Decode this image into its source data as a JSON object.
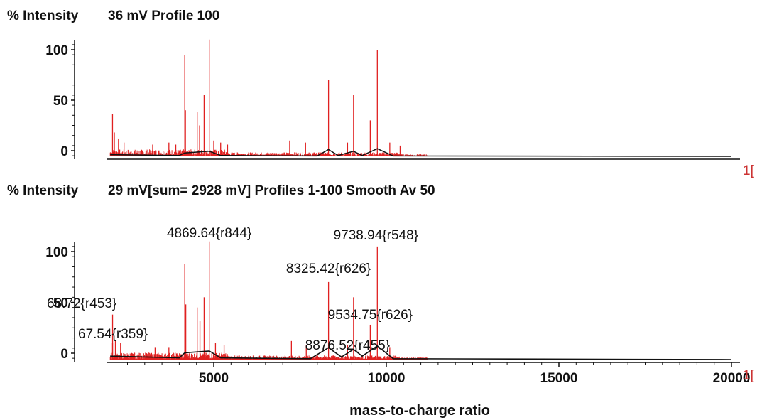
{
  "chart_data": [
    {
      "type": "line",
      "y_axis_label": "% Intensity",
      "header": "36 mV  Profile 100",
      "ylim": [
        0,
        100
      ],
      "xlim": [
        2000,
        20000
      ],
      "y_ticks": [
        0,
        50,
        100
      ],
      "edge_mark": "1[",
      "colors": {
        "raw": "#e02020",
        "smoothed": "#111111"
      },
      "peaks": [
        {
          "x": 2067,
          "y": 36
        },
        {
          "x": 2120,
          "y": 18
        },
        {
          "x": 2240,
          "y": 12
        },
        {
          "x": 2400,
          "y": 8
        },
        {
          "x": 3230,
          "y": 6
        },
        {
          "x": 3700,
          "y": 8
        },
        {
          "x": 3900,
          "y": 6
        },
        {
          "x": 4160,
          "y": 95
        },
        {
          "x": 4180,
          "y": 40
        },
        {
          "x": 4520,
          "y": 38
        },
        {
          "x": 4590,
          "y": 25
        },
        {
          "x": 4720,
          "y": 55
        },
        {
          "x": 4869.64,
          "y": 110
        },
        {
          "x": 5000,
          "y": 10
        },
        {
          "x": 5200,
          "y": 8
        },
        {
          "x": 5400,
          "y": 6
        },
        {
          "x": 7200,
          "y": 10
        },
        {
          "x": 7660,
          "y": 8
        },
        {
          "x": 8325.42,
          "y": 70
        },
        {
          "x": 8876.52,
          "y": 8
        },
        {
          "x": 9050,
          "y": 55
        },
        {
          "x": 9534.75,
          "y": 30
        },
        {
          "x": 9738.94,
          "y": 100
        },
        {
          "x": 10100,
          "y": 8
        },
        {
          "x": 10400,
          "y": 5
        }
      ],
      "smoothed": [
        {
          "x": 2000,
          "y": 2
        },
        {
          "x": 4000,
          "y": 1
        },
        {
          "x": 4160,
          "y": 4
        },
        {
          "x": 4869.64,
          "y": 6
        },
        {
          "x": 5200,
          "y": 1
        },
        {
          "x": 8000,
          "y": 0.5
        },
        {
          "x": 8325.42,
          "y": 8
        },
        {
          "x": 8600,
          "y": 1
        },
        {
          "x": 9050,
          "y": 6
        },
        {
          "x": 9300,
          "y": 1
        },
        {
          "x": 9738.94,
          "y": 9
        },
        {
          "x": 10200,
          "y": 0.5
        },
        {
          "x": 20000,
          "y": 0
        }
      ],
      "annotations": []
    },
    {
      "type": "line",
      "y_axis_label": "% Intensity",
      "header": "29 mV[sum= 2928 mV]  Profiles 1-100 Smooth Av 50",
      "xlabel": "mass-to-charge ratio",
      "ylim": [
        0,
        100
      ],
      "xlim": [
        2000,
        20000
      ],
      "y_ticks": [
        0,
        50,
        100
      ],
      "x_ticks": [
        5000,
        10000,
        15000,
        20000
      ],
      "edge_mark": "1[",
      "colors": {
        "raw": "#e02020",
        "smoothed": "#111111"
      },
      "peaks": [
        {
          "x": 2068.72,
          "y": 38
        },
        {
          "x": 2067.54,
          "y": 10
        },
        {
          "x": 2150,
          "y": 12
        },
        {
          "x": 2300,
          "y": 10
        },
        {
          "x": 3300,
          "y": 6
        },
        {
          "x": 3700,
          "y": 6
        },
        {
          "x": 4160,
          "y": 88
        },
        {
          "x": 4190,
          "y": 48
        },
        {
          "x": 4520,
          "y": 45
        },
        {
          "x": 4600,
          "y": 32
        },
        {
          "x": 4720,
          "y": 55
        },
        {
          "x": 4869.64,
          "y": 110
        },
        {
          "x": 5050,
          "y": 10
        },
        {
          "x": 5300,
          "y": 8
        },
        {
          "x": 7250,
          "y": 12
        },
        {
          "x": 7680,
          "y": 8
        },
        {
          "x": 8325.42,
          "y": 70
        },
        {
          "x": 8876.52,
          "y": 8
        },
        {
          "x": 9050,
          "y": 55
        },
        {
          "x": 9534.75,
          "y": 28
        },
        {
          "x": 9738.94,
          "y": 105
        },
        {
          "x": 10100,
          "y": 6
        }
      ],
      "smoothed": [
        {
          "x": 2000,
          "y": 4
        },
        {
          "x": 4000,
          "y": 2
        },
        {
          "x": 4160,
          "y": 8
        },
        {
          "x": 4869.64,
          "y": 10
        },
        {
          "x": 5200,
          "y": 2
        },
        {
          "x": 7800,
          "y": 1
        },
        {
          "x": 8325.42,
          "y": 14
        },
        {
          "x": 8700,
          "y": 3
        },
        {
          "x": 9050,
          "y": 12
        },
        {
          "x": 9300,
          "y": 4
        },
        {
          "x": 9738.94,
          "y": 16
        },
        {
          "x": 10200,
          "y": 1
        },
        {
          "x": 20000,
          "y": 0
        }
      ],
      "annotations": [
        {
          "text": "4869.64{r844}",
          "x": 4869.64
        },
        {
          "text": "9738.94{r548}",
          "x": 9738.94
        },
        {
          "text": "8325.42{r626}",
          "x": 8325.42
        },
        {
          "text": "68.72{r453}",
          "x": 2068.72
        },
        {
          "text": "9534.75{r626}",
          "x": 9534.75
        },
        {
          "text": "67.54{r359}",
          "x": 2067.54
        },
        {
          "text": "8876.52{r455}",
          "x": 8876.52
        }
      ]
    }
  ]
}
